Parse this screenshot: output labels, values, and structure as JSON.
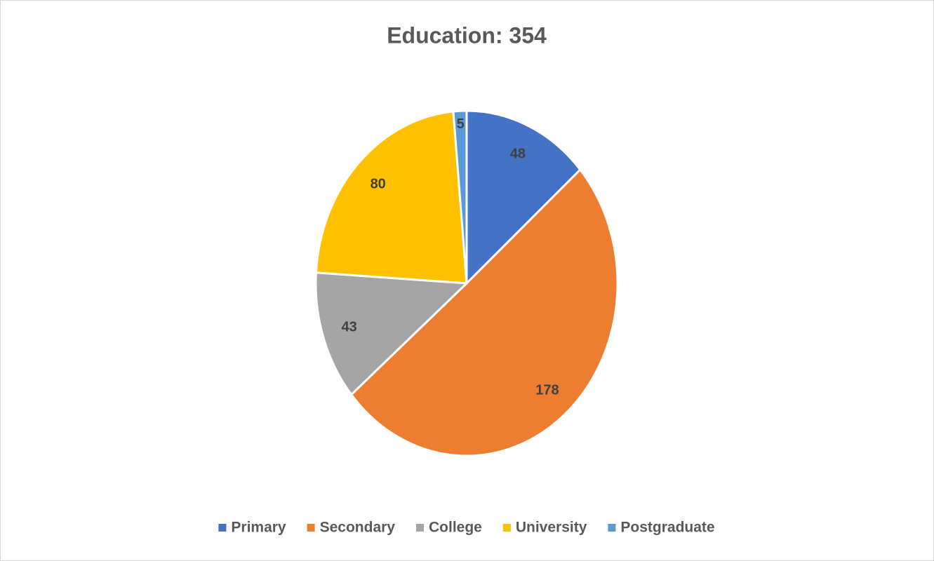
{
  "chart_data": {
    "type": "pie",
    "title": "Education: 354",
    "categories": [
      "Primary",
      "Secondary",
      "College",
      "University",
      "Postgraduate"
    ],
    "values": [
      48,
      178,
      43,
      80,
      5
    ],
    "colors": [
      "#4472c4",
      "#ed7d31",
      "#a5a5a5",
      "#ffc000",
      "#5b9bd5"
    ],
    "legend": "bottom"
  }
}
